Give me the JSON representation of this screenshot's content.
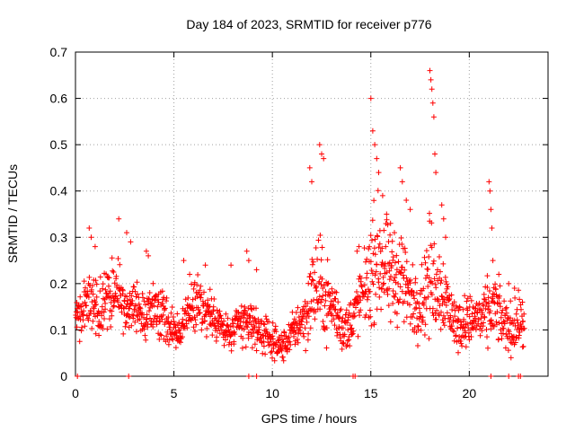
{
  "chart_data": {
    "type": "scatter",
    "title": "Day 184 of 2023, SRMTID for receiver p776",
    "xlabel": "GPS time / hours",
    "ylabel": "SRMTID / TECUs",
    "xlim": [
      0,
      24
    ],
    "ylim": [
      0,
      0.7
    ],
    "xticks": [
      0,
      5,
      10,
      15,
      20
    ],
    "yticks": [
      0,
      0.1,
      0.2,
      0.3,
      0.4,
      0.5,
      0.6,
      0.7
    ],
    "xtick_labels": [
      "0",
      "5",
      "10",
      "15",
      "20"
    ],
    "ytick_labels": [
      "0",
      "0.1",
      "0.2",
      "0.3",
      "0.4",
      "0.5",
      "0.6",
      "0.7"
    ],
    "grid": true,
    "marker": "+",
    "color": "#ff0000",
    "series": [
      {
        "name": "SRMTID",
        "trend": {
          "x": [
            0.0,
            0.3,
            0.6,
            0.9,
            1.2,
            1.5,
            1.8,
            2.1,
            2.4,
            2.7,
            3.0,
            3.3,
            3.6,
            3.9,
            4.2,
            4.5,
            4.8,
            5.1,
            5.4,
            5.7,
            6.0,
            6.3,
            6.6,
            6.9,
            7.2,
            7.5,
            7.8,
            8.1,
            8.4,
            8.7,
            9.0,
            9.3,
            9.6,
            9.9,
            10.2,
            10.5,
            10.8,
            11.1,
            11.4,
            11.7,
            12.0,
            12.3,
            12.6,
            12.9,
            13.2,
            13.5,
            13.8,
            14.1,
            14.4,
            14.7,
            15.0,
            15.3,
            15.6,
            15.9,
            16.2,
            16.5,
            16.8,
            17.1,
            17.4,
            17.7,
            18.0,
            18.3,
            18.6,
            18.9,
            19.2,
            19.5,
            19.8,
            20.1,
            20.4,
            20.7,
            21.0,
            21.3,
            21.6,
            21.9,
            22.2,
            22.5,
            22.8
          ],
          "y": [
            0.14,
            0.13,
            0.16,
            0.15,
            0.14,
            0.17,
            0.18,
            0.19,
            0.15,
            0.14,
            0.16,
            0.13,
            0.12,
            0.15,
            0.14,
            0.13,
            0.11,
            0.09,
            0.1,
            0.14,
            0.15,
            0.16,
            0.14,
            0.13,
            0.12,
            0.1,
            0.09,
            0.1,
            0.11,
            0.12,
            0.11,
            0.1,
            0.09,
            0.08,
            0.07,
            0.06,
            0.08,
            0.1,
            0.12,
            0.13,
            0.18,
            0.2,
            0.17,
            0.16,
            0.14,
            0.11,
            0.1,
            0.13,
            0.16,
            0.19,
            0.22,
            0.26,
            0.24,
            0.21,
            0.2,
            0.23,
            0.19,
            0.16,
            0.15,
            0.18,
            0.22,
            0.2,
            0.19,
            0.16,
            0.12,
            0.11,
            0.12,
            0.12,
            0.13,
            0.12,
            0.14,
            0.15,
            0.12,
            0.11,
            0.1,
            0.12,
            0.1
          ],
          "spread": [
            0.04,
            0.05,
            0.07,
            0.06,
            0.05,
            0.06,
            0.07,
            0.06,
            0.05,
            0.05,
            0.06,
            0.05,
            0.05,
            0.05,
            0.05,
            0.05,
            0.04,
            0.04,
            0.04,
            0.05,
            0.05,
            0.05,
            0.05,
            0.05,
            0.04,
            0.04,
            0.04,
            0.04,
            0.05,
            0.05,
            0.04,
            0.04,
            0.04,
            0.03,
            0.03,
            0.03,
            0.03,
            0.04,
            0.05,
            0.06,
            0.09,
            0.1,
            0.08,
            0.07,
            0.06,
            0.05,
            0.05,
            0.05,
            0.06,
            0.07,
            0.1,
            0.12,
            0.1,
            0.1,
            0.09,
            0.1,
            0.09,
            0.07,
            0.06,
            0.08,
            0.12,
            0.1,
            0.08,
            0.07,
            0.05,
            0.05,
            0.05,
            0.05,
            0.05,
            0.05,
            0.07,
            0.06,
            0.05,
            0.05,
            0.05,
            0.05,
            0.04
          ],
          "samples": 1500,
          "seed": 776
        },
        "points": {
          "x": [
            0.7,
            0.8,
            1.0,
            2.2,
            2.6,
            2.8,
            3.6,
            3.7,
            8.7,
            8.8,
            11.9,
            12.0,
            12.4,
            12.5,
            12.6,
            14.3,
            14.4,
            15.0,
            15.1,
            15.2,
            15.3,
            15.4,
            15.6,
            15.8,
            16.0,
            16.2,
            16.5,
            16.6,
            16.8,
            17.0,
            18.0,
            18.05,
            18.1,
            18.15,
            18.2,
            18.25,
            18.3,
            18.6,
            18.7,
            18.8,
            21.0,
            21.05,
            21.1,
            21.15,
            21.2,
            21.5,
            22.0,
            22.3,
            22.7,
            5.5,
            5.8,
            6.6,
            7.9,
            9.2
          ],
          "y": [
            0.32,
            0.3,
            0.28,
            0.34,
            0.31,
            0.29,
            0.27,
            0.26,
            0.27,
            0.25,
            0.45,
            0.42,
            0.5,
            0.48,
            0.47,
            0.27,
            0.28,
            0.6,
            0.53,
            0.5,
            0.47,
            0.44,
            0.39,
            0.35,
            0.33,
            0.31,
            0.45,
            0.42,
            0.38,
            0.36,
            0.66,
            0.64,
            0.62,
            0.59,
            0.56,
            0.48,
            0.44,
            0.37,
            0.34,
            0.3,
            0.42,
            0.4,
            0.36,
            0.32,
            0.25,
            0.22,
            0.2,
            0.19,
            0.16,
            0.25,
            0.22,
            0.24,
            0.24,
            0.23
          ]
        },
        "zero_markers": [
          0.1,
          2.7,
          8.8,
          9.2,
          14.1,
          14.2,
          21.1,
          22.0,
          22.5,
          22.6
        ]
      }
    ]
  }
}
